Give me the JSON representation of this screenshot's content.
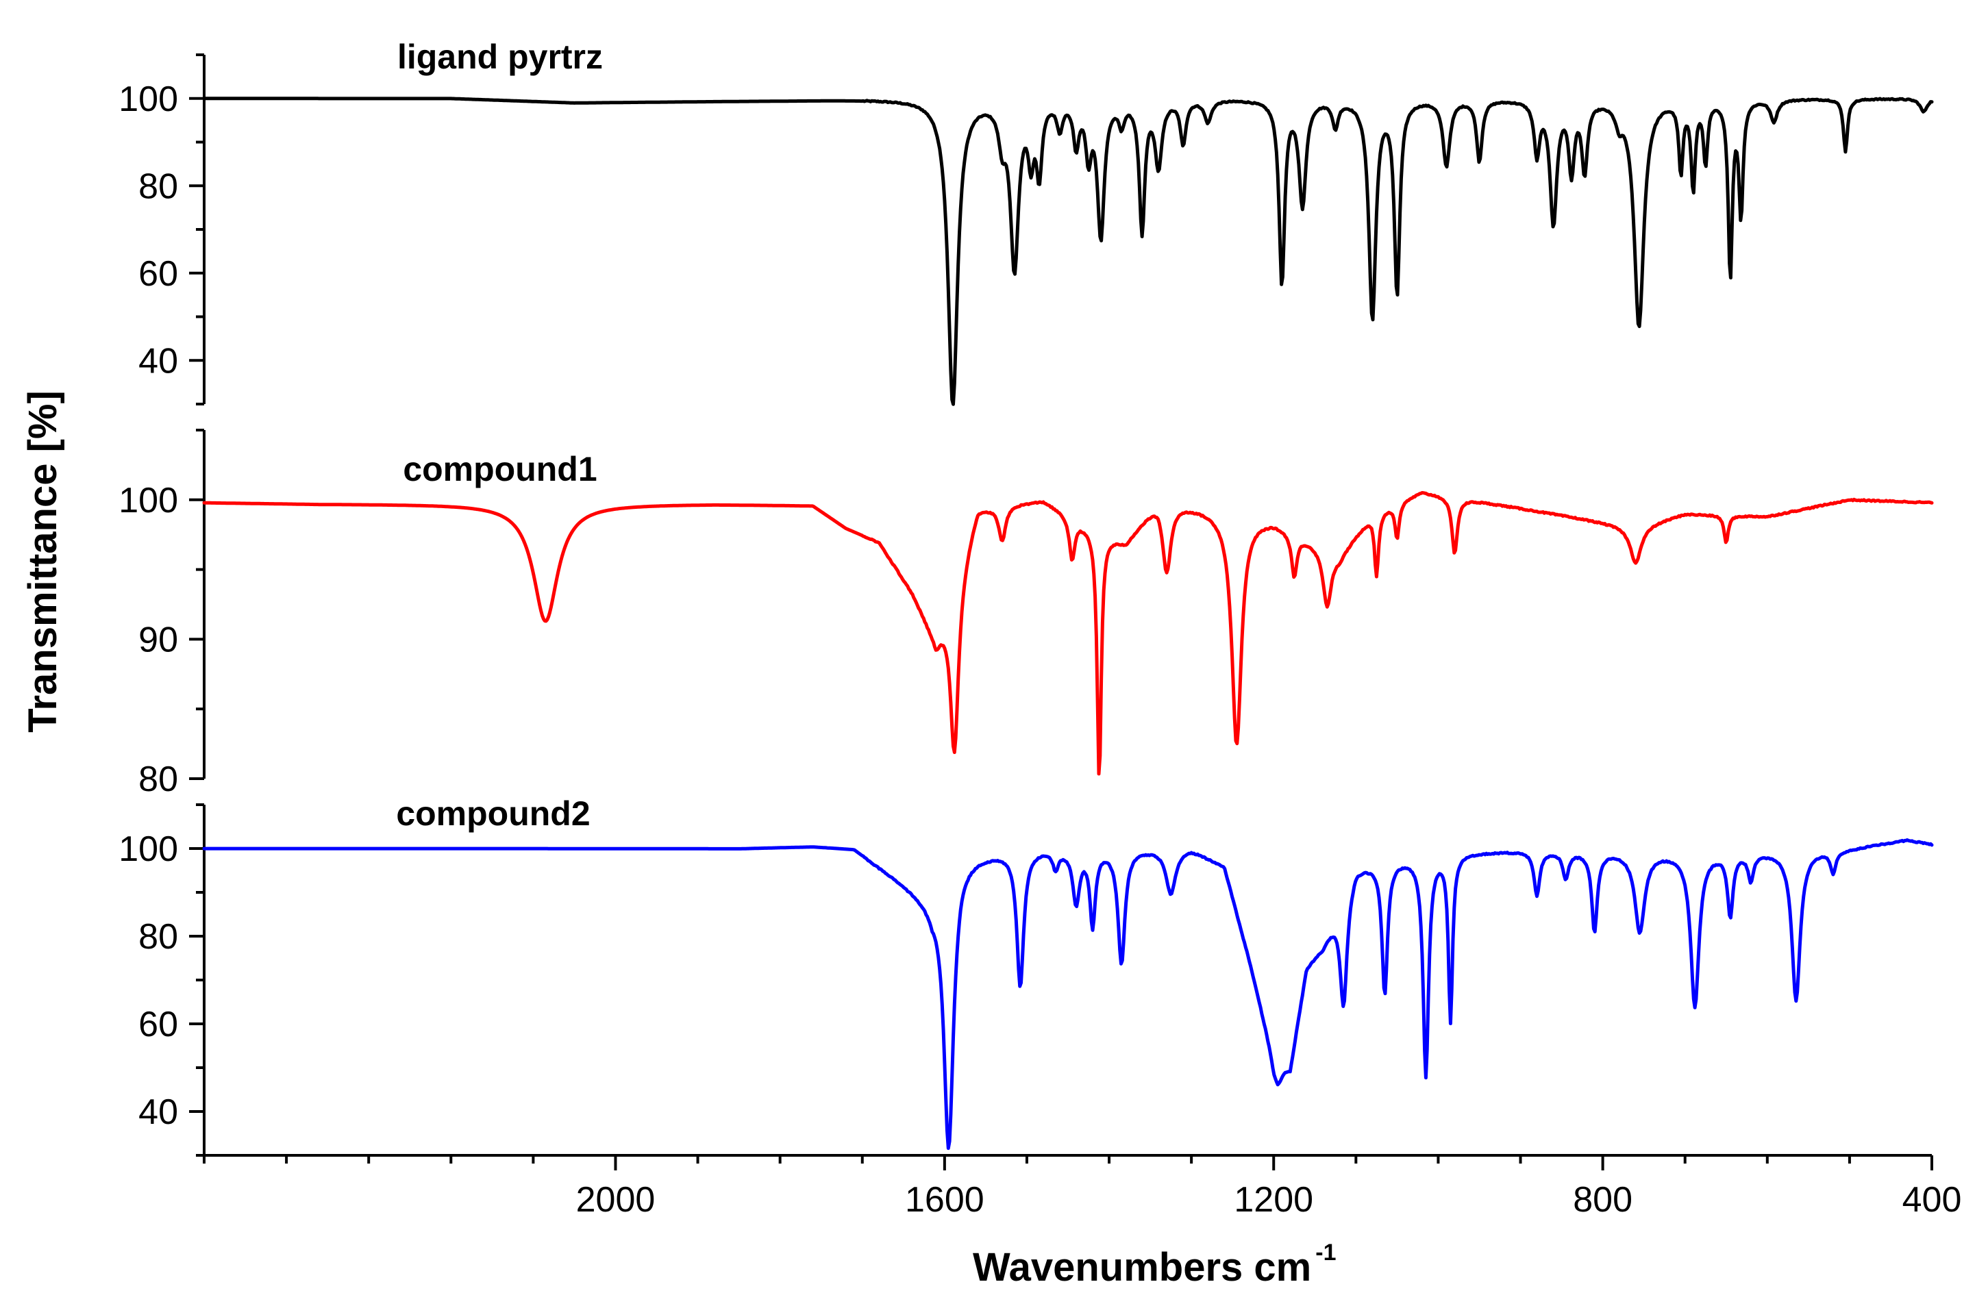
{
  "chart_data": {
    "type": "line",
    "xlabel": "Wavenumbers cm",
    "xlabel_superscript": "-1",
    "ylabel": "Transmittance [%]",
    "xlim": [
      2500,
      400
    ],
    "xticks": [
      2000,
      1600,
      1200,
      800,
      400
    ],
    "xtick_labels": [
      "2000",
      "1600",
      "1200",
      "800",
      "400"
    ],
    "panels": [
      {
        "name": "ligand pyrtrz",
        "color": "#000000",
        "ylim": [
          30,
          110
        ],
        "yticks": [
          40,
          60,
          80,
          100
        ],
        "ytick_labels": [
          "40",
          "60",
          "80",
          "100"
        ],
        "baseline": [
          [
            2400,
            100
          ],
          [
            2200,
            100
          ],
          [
            2050,
            99
          ],
          [
            1800,
            99.5
          ],
          [
            1620,
            100
          ]
        ],
        "peaks": [
          [
            1590,
            70,
            7
          ],
          [
            1530,
            8,
            5
          ],
          [
            1515,
            38,
            6
          ],
          [
            1495,
            12,
            4
          ],
          [
            1485,
            16,
            4
          ],
          [
            1460,
            6,
            4
          ],
          [
            1440,
            10,
            4
          ],
          [
            1425,
            12,
            4
          ],
          [
            1410,
            31,
            5
          ],
          [
            1360,
            30,
            4
          ],
          [
            1385,
            5,
            4
          ],
          [
            1340,
            15,
            5
          ],
          [
            1310,
            10,
            4
          ],
          [
            1280,
            5,
            5
          ],
          [
            1190,
            42,
            4
          ],
          [
            1165,
            24,
            5
          ],
          [
            1125,
            6,
            4
          ],
          [
            1080,
            50,
            5
          ],
          [
            1050,
            44,
            4
          ],
          [
            990,
            15,
            5
          ],
          [
            950,
            14,
            4
          ],
          [
            880,
            12,
            4
          ],
          [
            860,
            28,
            5
          ],
          [
            838,
            16,
            4
          ],
          [
            822,
            16,
            4
          ],
          [
            780,
            4,
            5
          ],
          [
            756,
            52,
            7
          ],
          [
            705,
            16,
            3
          ],
          [
            690,
            20,
            3
          ],
          [
            675,
            14,
            3
          ],
          [
            645,
            40,
            3
          ],
          [
            632,
            26,
            3
          ],
          [
            592,
            5,
            5
          ],
          [
            505,
            12,
            3
          ],
          [
            410,
            3,
            5
          ]
        ]
      },
      {
        "name": "compound1",
        "color": "#ff0000",
        "ylim": [
          80,
          105
        ],
        "yticks": [
          80,
          90,
          100
        ],
        "ytick_labels": [
          "80",
          "90",
          "100"
        ],
        "baseline": [
          [
            2500,
            99.8
          ],
          [
            2360,
            99.7
          ],
          [
            2150,
            99.7
          ],
          [
            1880,
            99.7
          ],
          [
            1760,
            99.6
          ],
          [
            1720,
            98
          ],
          [
            1680,
            97
          ],
          [
            1640,
            93.5
          ],
          [
            1610,
            90
          ],
          [
            1585,
            94.5
          ],
          [
            1560,
            99.5
          ],
          [
            1480,
            100
          ],
          [
            1420,
            98
          ],
          [
            1380,
            97
          ],
          [
            1340,
            100
          ],
          [
            1200,
            98.5
          ],
          [
            1120,
            96
          ],
          [
            1080,
            99
          ],
          [
            1020,
            100.6
          ],
          [
            960,
            100
          ],
          [
            880,
            99.2
          ],
          [
            760,
            98
          ],
          [
            700,
            99
          ],
          [
            600,
            98.8
          ],
          [
            500,
            100
          ],
          [
            400,
            99.8
          ]
        ],
        "peaks": [
          [
            2085,
            8.4,
            18
          ],
          [
            1588,
            12,
            6
          ],
          [
            1530,
            2.5,
            5
          ],
          [
            1445,
            3,
            4
          ],
          [
            1412,
            17.8,
            3
          ],
          [
            1330,
            5,
            6
          ],
          [
            1245,
            16.5,
            7
          ],
          [
            1175,
            3,
            4
          ],
          [
            1135,
            4,
            6
          ],
          [
            1075,
            4.5,
            3
          ],
          [
            1050,
            2.5,
            3
          ],
          [
            980,
            4,
            4
          ],
          [
            760,
            2.5,
            8
          ],
          [
            650,
            2,
            3
          ]
        ]
      },
      {
        "name": "compound2",
        "color": "#0000ff",
        "ylim": [
          30,
          110
        ],
        "yticks": [
          40,
          60,
          80,
          100
        ],
        "ytick_labels": [
          "40",
          "60",
          "80",
          "100"
        ],
        "baseline": [
          [
            2500,
            100
          ],
          [
            2300,
            100
          ],
          [
            2060,
            100
          ],
          [
            1850,
            100
          ],
          [
            1760,
            100.5
          ],
          [
            1710,
            100
          ],
          [
            1680,
            96
          ],
          [
            1640,
            91
          ],
          [
            1615,
            88
          ],
          [
            1580,
            98
          ],
          [
            1500,
            100
          ],
          [
            1300,
            100
          ],
          [
            1260,
            96
          ],
          [
            1230,
            75
          ],
          [
            1200,
            52
          ],
          [
            1180,
            50
          ],
          [
            1160,
            73
          ],
          [
            1140,
            78
          ],
          [
            1100,
            96
          ],
          [
            1000,
            99
          ],
          [
            900,
            99.5
          ],
          [
            700,
            99
          ],
          [
            560,
            99.5
          ],
          [
            500,
            100
          ],
          [
            430,
            102
          ],
          [
            400,
            101
          ]
        ],
        "peaks": [
          [
            1595,
            62,
            7
          ],
          [
            1508,
            31,
            5
          ],
          [
            1465,
            4,
            4
          ],
          [
            1440,
            12,
            5
          ],
          [
            1420,
            17,
            4
          ],
          [
            1385,
            26,
            5
          ],
          [
            1325,
            10,
            7
          ],
          [
            1195,
            5,
            6
          ],
          [
            1115,
            25,
            5
          ],
          [
            1065,
            30,
            4
          ],
          [
            1015,
            50,
            4
          ],
          [
            985,
            38,
            3
          ],
          [
            880,
            10,
            4
          ],
          [
            845,
            6,
            4
          ],
          [
            810,
            18,
            4
          ],
          [
            755,
            18,
            7
          ],
          [
            688,
            35,
            6
          ],
          [
            645,
            14,
            4
          ],
          [
            620,
            6,
            4
          ],
          [
            565,
            34,
            6
          ],
          [
            520,
            5,
            4
          ]
        ]
      }
    ]
  }
}
